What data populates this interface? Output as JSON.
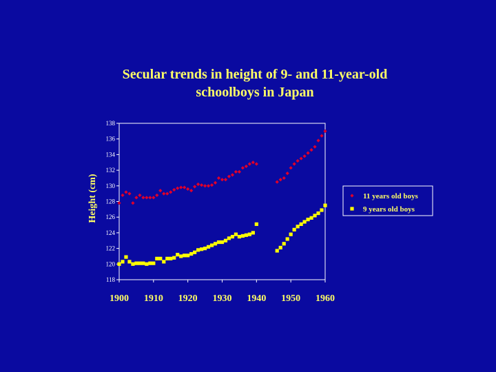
{
  "chart_data": {
    "type": "scatter",
    "title_line1": "Secular trends in height of 9- and 11-year-old",
    "title_line2": "schoolboys in Japan",
    "ylabel": "Height (cm)",
    "xlabel": "",
    "xlim": [
      1900,
      1960
    ],
    "ylim": [
      118,
      138
    ],
    "y_ticks": [
      118,
      120,
      122,
      124,
      126,
      128,
      130,
      132,
      134,
      136,
      138
    ],
    "x_ticks": [
      1900,
      1910,
      1920,
      1930,
      1940,
      1950,
      1960
    ],
    "grid": false,
    "legend_position": "right",
    "series": [
      {
        "name": "11 years old boys",
        "marker": "diamond",
        "color": "#e0002a",
        "points": [
          [
            1900,
            127.8
          ],
          [
            1901,
            128.8
          ],
          [
            1902,
            129.2
          ],
          [
            1903,
            129.0
          ],
          [
            1904,
            127.8
          ],
          [
            1905,
            128.5
          ],
          [
            1906,
            128.8
          ],
          [
            1907,
            128.5
          ],
          [
            1908,
            128.5
          ],
          [
            1909,
            128.5
          ],
          [
            1910,
            128.5
          ],
          [
            1911,
            128.8
          ],
          [
            1912,
            129.4
          ],
          [
            1913,
            129.0
          ],
          [
            1914,
            129.0
          ],
          [
            1915,
            129.2
          ],
          [
            1916,
            129.5
          ],
          [
            1917,
            129.7
          ],
          [
            1918,
            129.8
          ],
          [
            1919,
            129.8
          ],
          [
            1920,
            129.6
          ],
          [
            1921,
            129.4
          ],
          [
            1922,
            129.9
          ],
          [
            1923,
            130.2
          ],
          [
            1924,
            130.1
          ],
          [
            1925,
            130.0
          ],
          [
            1926,
            130.0
          ],
          [
            1927,
            130.1
          ],
          [
            1928,
            130.4
          ],
          [
            1929,
            131.0
          ],
          [
            1930,
            130.8
          ],
          [
            1931,
            130.8
          ],
          [
            1932,
            131.2
          ],
          [
            1933,
            131.4
          ],
          [
            1934,
            131.8
          ],
          [
            1935,
            131.8
          ],
          [
            1936,
            132.3
          ],
          [
            1937,
            132.5
          ],
          [
            1938,
            132.8
          ],
          [
            1939,
            133.0
          ],
          [
            1940,
            132.8
          ],
          [
            1946,
            130.5
          ],
          [
            1947,
            130.8
          ],
          [
            1948,
            131.0
          ],
          [
            1949,
            131.6
          ],
          [
            1950,
            132.3
          ],
          [
            1951,
            132.8
          ],
          [
            1952,
            133.2
          ],
          [
            1953,
            133.5
          ],
          [
            1954,
            133.8
          ],
          [
            1955,
            134.2
          ],
          [
            1956,
            134.6
          ],
          [
            1957,
            135.0
          ],
          [
            1958,
            135.8
          ],
          [
            1959,
            136.4
          ],
          [
            1960,
            137.0
          ]
        ]
      },
      {
        "name": "9 years old boys",
        "marker": "square",
        "color": "#ffff00",
        "points": [
          [
            1900,
            120.0
          ],
          [
            1901,
            120.3
          ],
          [
            1902,
            120.9
          ],
          [
            1903,
            120.3
          ],
          [
            1904,
            120.0
          ],
          [
            1905,
            120.1
          ],
          [
            1906,
            120.1
          ],
          [
            1907,
            120.1
          ],
          [
            1908,
            120.0
          ],
          [
            1909,
            120.1
          ],
          [
            1910,
            120.1
          ],
          [
            1911,
            120.7
          ],
          [
            1912,
            120.7
          ],
          [
            1913,
            120.3
          ],
          [
            1914,
            120.7
          ],
          [
            1915,
            120.7
          ],
          [
            1916,
            120.8
          ],
          [
            1917,
            121.2
          ],
          [
            1918,
            121.0
          ],
          [
            1919,
            121.1
          ],
          [
            1920,
            121.1
          ],
          [
            1921,
            121.3
          ],
          [
            1922,
            121.5
          ],
          [
            1923,
            121.8
          ],
          [
            1924,
            121.9
          ],
          [
            1925,
            122.0
          ],
          [
            1926,
            122.2
          ],
          [
            1927,
            122.4
          ],
          [
            1928,
            122.6
          ],
          [
            1929,
            122.8
          ],
          [
            1930,
            122.8
          ],
          [
            1931,
            123.0
          ],
          [
            1932,
            123.3
          ],
          [
            1933,
            123.5
          ],
          [
            1934,
            123.8
          ],
          [
            1935,
            123.5
          ],
          [
            1936,
            123.6
          ],
          [
            1937,
            123.7
          ],
          [
            1938,
            123.8
          ],
          [
            1939,
            124.0
          ],
          [
            1940,
            125.1
          ],
          [
            1946,
            121.7
          ],
          [
            1947,
            122.1
          ],
          [
            1948,
            122.6
          ],
          [
            1949,
            123.2
          ],
          [
            1950,
            123.8
          ],
          [
            1951,
            124.4
          ],
          [
            1952,
            124.8
          ],
          [
            1953,
            125.1
          ],
          [
            1954,
            125.4
          ],
          [
            1955,
            125.7
          ],
          [
            1956,
            125.9
          ],
          [
            1957,
            126.2
          ],
          [
            1958,
            126.5
          ],
          [
            1959,
            126.9
          ],
          [
            1960,
            127.5
          ]
        ]
      }
    ]
  }
}
